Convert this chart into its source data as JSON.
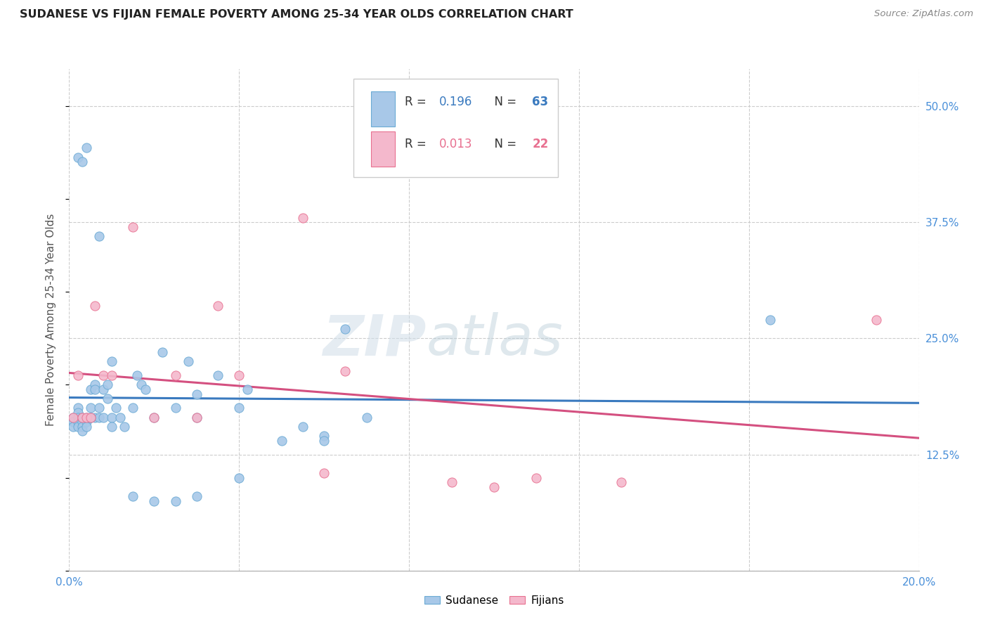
{
  "title": "SUDANESE VS FIJIAN FEMALE POVERTY AMONG 25-34 YEAR OLDS CORRELATION CHART",
  "source": "Source: ZipAtlas.com",
  "ylabel": "Female Poverty Among 25-34 Year Olds",
  "xlim": [
    0.0,
    0.2
  ],
  "ylim": [
    0.0,
    0.54
  ],
  "xticks": [
    0.0,
    0.04,
    0.08,
    0.12,
    0.16,
    0.2
  ],
  "xticklabels": [
    "0.0%",
    "",
    "",
    "",
    "",
    "20.0%"
  ],
  "yticks_right": [
    0.0,
    0.125,
    0.25,
    0.375,
    0.5
  ],
  "ytick_labels_right": [
    "",
    "12.5%",
    "25.0%",
    "37.5%",
    "50.0%"
  ],
  "sudanese_R": 0.196,
  "sudanese_N": 63,
  "fijian_R": 0.013,
  "fijian_N": 22,
  "sudanese_color": "#a8c8e8",
  "fijian_color": "#f4b8cc",
  "sudanese_edge_color": "#6aaad4",
  "fijian_edge_color": "#e87090",
  "sudanese_line_color": "#3a7abf",
  "fijian_line_color": "#d45080",
  "watermark_zip": "ZIP",
  "watermark_atlas": "atlas",
  "sudanese_x": [
    0.001,
    0.001,
    0.001,
    0.002,
    0.002,
    0.002,
    0.002,
    0.002,
    0.003,
    0.003,
    0.003,
    0.003,
    0.004,
    0.004,
    0.004,
    0.005,
    0.005,
    0.005,
    0.006,
    0.006,
    0.006,
    0.007,
    0.007,
    0.008,
    0.008,
    0.009,
    0.009,
    0.01,
    0.01,
    0.011,
    0.012,
    0.013,
    0.015,
    0.016,
    0.017,
    0.018,
    0.02,
    0.022,
    0.025,
    0.028,
    0.03,
    0.03,
    0.035,
    0.04,
    0.042,
    0.05,
    0.055,
    0.06,
    0.065,
    0.07,
    0.002,
    0.003,
    0.004,
    0.005,
    0.007,
    0.01,
    0.015,
    0.02,
    0.025,
    0.03,
    0.04,
    0.06,
    0.165
  ],
  "sudanese_y": [
    0.165,
    0.16,
    0.155,
    0.175,
    0.17,
    0.165,
    0.16,
    0.155,
    0.165,
    0.16,
    0.155,
    0.15,
    0.165,
    0.16,
    0.155,
    0.195,
    0.175,
    0.165,
    0.2,
    0.195,
    0.165,
    0.175,
    0.165,
    0.195,
    0.165,
    0.2,
    0.185,
    0.225,
    0.165,
    0.175,
    0.165,
    0.155,
    0.175,
    0.21,
    0.2,
    0.195,
    0.165,
    0.235,
    0.175,
    0.225,
    0.19,
    0.165,
    0.21,
    0.175,
    0.195,
    0.14,
    0.155,
    0.145,
    0.26,
    0.165,
    0.445,
    0.44,
    0.455,
    0.165,
    0.36,
    0.155,
    0.08,
    0.075,
    0.075,
    0.08,
    0.1,
    0.14,
    0.27
  ],
  "fijian_x": [
    0.001,
    0.002,
    0.003,
    0.004,
    0.005,
    0.006,
    0.008,
    0.01,
    0.015,
    0.02,
    0.025,
    0.03,
    0.035,
    0.04,
    0.055,
    0.06,
    0.065,
    0.09,
    0.1,
    0.11,
    0.13,
    0.19
  ],
  "fijian_y": [
    0.165,
    0.21,
    0.165,
    0.165,
    0.165,
    0.285,
    0.21,
    0.21,
    0.37,
    0.165,
    0.21,
    0.165,
    0.285,
    0.21,
    0.38,
    0.105,
    0.215,
    0.095,
    0.09,
    0.1,
    0.095,
    0.27
  ]
}
